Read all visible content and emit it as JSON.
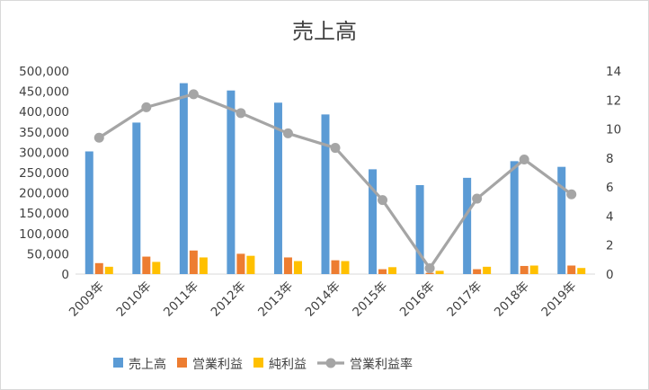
{
  "chart_data": {
    "type": "bar",
    "title": "売上高",
    "categories": [
      "2009年",
      "2010年",
      "2011年",
      "2012年",
      "2013年",
      "2014年",
      "2015年",
      "2016年",
      "2017年",
      "2018年",
      "2019年"
    ],
    "series": [
      {
        "name": "売上高",
        "type": "bar",
        "axis": "left",
        "color": "#5b9bd5",
        "values": [
          302000,
          373000,
          470000,
          452000,
          422000,
          393000,
          258000,
          219000,
          237000,
          278000,
          264000
        ]
      },
      {
        "name": "営業利益",
        "type": "bar",
        "axis": "left",
        "color": "#ed7d31",
        "values": [
          27000,
          43000,
          58000,
          50000,
          41000,
          34000,
          12000,
          3000,
          12000,
          20000,
          21000
        ]
      },
      {
        "name": "純利益",
        "type": "bar",
        "axis": "left",
        "color": "#ffc000",
        "values": [
          18000,
          30000,
          41000,
          45000,
          32000,
          32000,
          17000,
          8000,
          18000,
          21000,
          15000
        ]
      },
      {
        "name": "営業利益率",
        "type": "line",
        "axis": "right",
        "color": "#a5a5a5",
        "values": [
          9.4,
          11.5,
          12.4,
          11.1,
          9.7,
          8.7,
          5.1,
          0.4,
          5.2,
          7.9,
          5.5
        ]
      }
    ],
    "y_left": {
      "min": 0,
      "max": 500000,
      "step": 50000,
      "tick_labels": [
        "0",
        "50,000",
        "100,000",
        "150,000",
        "200,000",
        "250,000",
        "300,000",
        "350,000",
        "400,000",
        "450,000",
        "500,000"
      ]
    },
    "y_right": {
      "min": 0,
      "max": 14,
      "step": 2,
      "tick_labels": [
        "0",
        "2",
        "4",
        "6",
        "8",
        "10",
        "12",
        "14"
      ]
    },
    "xlabel": "",
    "ylabel": "",
    "grid": false,
    "legend_position": "bottom"
  }
}
